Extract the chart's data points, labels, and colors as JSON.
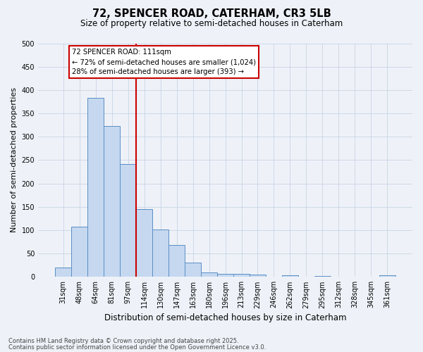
{
  "title1": "72, SPENCER ROAD, CATERHAM, CR3 5LB",
  "title2": "Size of property relative to semi-detached houses in Caterham",
  "xlabel": "Distribution of semi-detached houses by size in Caterham",
  "ylabel": "Number of semi-detached properties",
  "categories": [
    "31sqm",
    "48sqm",
    "64sqm",
    "81sqm",
    "97sqm",
    "114sqm",
    "130sqm",
    "147sqm",
    "163sqm",
    "180sqm",
    "196sqm",
    "213sqm",
    "229sqm",
    "246sqm",
    "262sqm",
    "279sqm",
    "295sqm",
    "312sqm",
    "328sqm",
    "345sqm",
    "361sqm"
  ],
  "values": [
    20,
    108,
    383,
    323,
    242,
    145,
    102,
    68,
    30,
    10,
    6,
    6,
    5,
    0,
    3,
    0,
    2,
    0,
    0,
    0,
    4
  ],
  "bar_color": "#c5d8f0",
  "bar_edge_color": "#5b8ec4",
  "vline_color": "#cc0000",
  "annotation_text": "72 SPENCER ROAD: 111sqm\n← 72% of semi-detached houses are smaller (1,024)\n28% of semi-detached houses are larger (393) →",
  "annotation_box_color": "#ffffff",
  "annotation_box_edge": "#cc0000",
  "footnote1": "Contains HM Land Registry data © Crown copyright and database right 2025.",
  "footnote2": "Contains public sector information licensed under the Open Government Licence v3.0.",
  "background_color": "#eef2f8",
  "ylim": [
    0,
    500
  ],
  "yticks": [
    0,
    50,
    100,
    150,
    200,
    250,
    300,
    350,
    400,
    450,
    500
  ]
}
